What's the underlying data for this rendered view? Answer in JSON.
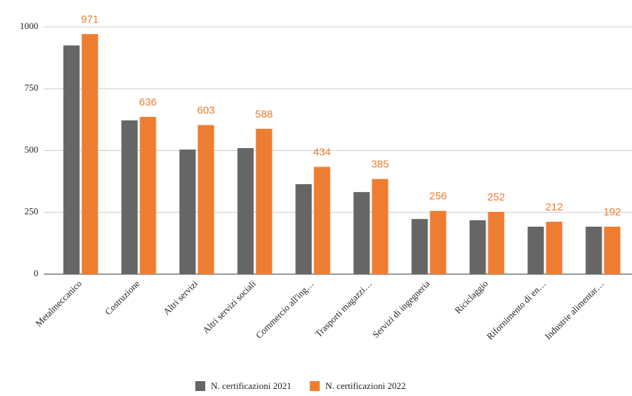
{
  "chart_data": {
    "type": "bar",
    "categories": [
      "Metalmeccanico",
      "Costruzione",
      "Altri servizi",
      "Altri servizi sociali",
      "Commercio all'ing…",
      "Trasporti magazzi…",
      "Servizi di ingegneria",
      "Riciclaggio",
      "Rifornimento di en…",
      "Industrie alimentar…"
    ],
    "series": [
      {
        "name": "N. certificazioni 2021",
        "color": "#666666",
        "values": [
          925,
          622,
          504,
          510,
          364,
          332,
          223,
          218,
          192,
          192
        ],
        "show_labels": false
      },
      {
        "name": "N. certificazioni 2022",
        "color": "#ef7d31",
        "values": [
          971,
          636,
          603,
          588,
          434,
          385,
          256,
          252,
          212,
          192
        ],
        "show_labels": true
      }
    ],
    "ylim": [
      0,
      1000
    ],
    "yticks": [
      0,
      250,
      500,
      750,
      1000
    ],
    "grid": true
  }
}
